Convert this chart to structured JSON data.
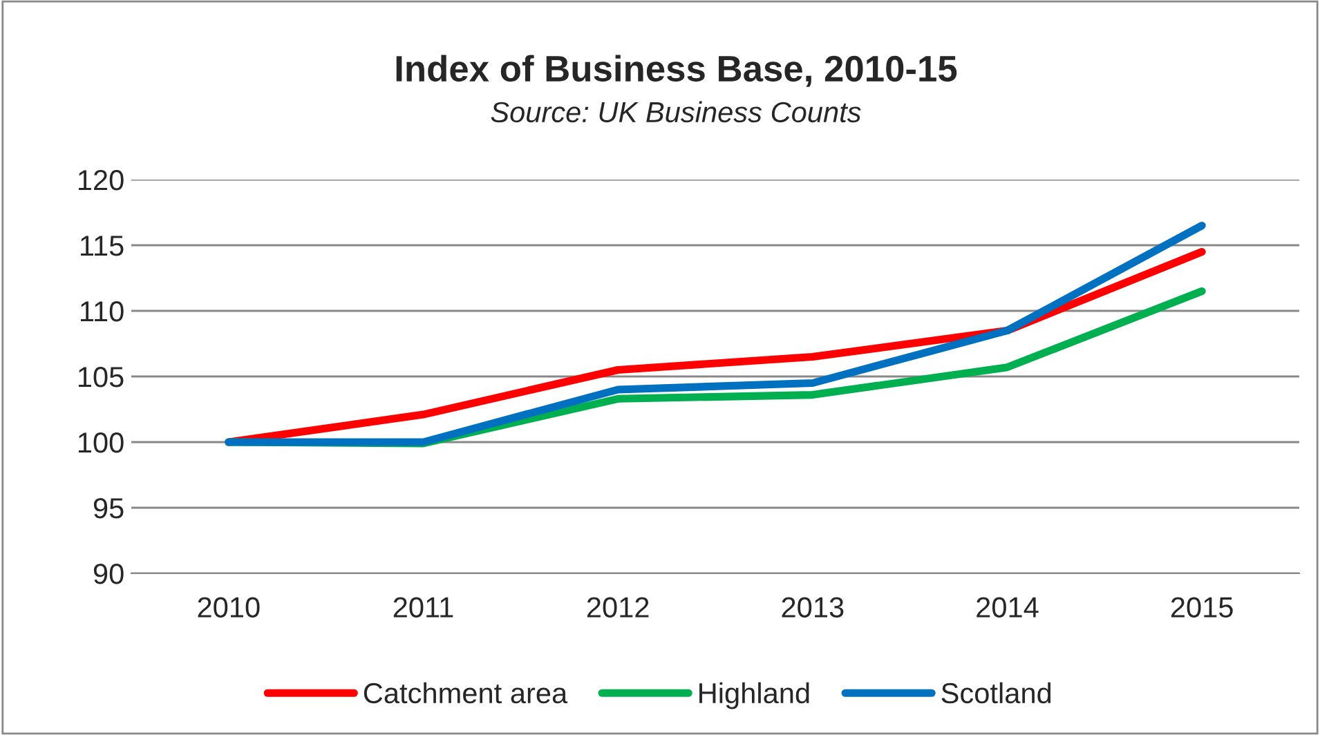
{
  "chart_data": {
    "type": "line",
    "title": "Index of Business Base, 2010-15",
    "subtitle": "Source: UK Business Counts",
    "categories": [
      "2010",
      "2011",
      "2012",
      "2013",
      "2014",
      "2015"
    ],
    "series": [
      {
        "name": "Catchment area",
        "color": "#ff0000",
        "values": [
          100,
          102.1,
          105.5,
          106.5,
          108.5,
          114.5
        ]
      },
      {
        "name": "Highland",
        "color": "#00b050",
        "values": [
          100,
          99.9,
          103.3,
          103.6,
          105.7,
          111.5
        ]
      },
      {
        "name": "Scotland",
        "color": "#0070c0",
        "values": [
          100,
          100,
          104.0,
          104.5,
          108.5,
          116.5
        ]
      }
    ],
    "ylim": [
      90,
      120
    ],
    "yticks": [
      90,
      95,
      100,
      105,
      110,
      115,
      120
    ],
    "grid": "y",
    "legend": "bottom",
    "marker": "none",
    "line_style": "solid"
  }
}
